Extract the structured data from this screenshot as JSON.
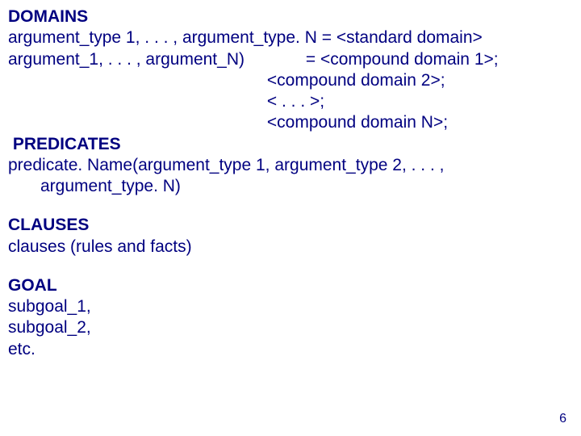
{
  "text_color": "#000080",
  "background_color": "#ffffff",
  "font_family": "Arial",
  "font_size_pt": 16,
  "page_number": "6",
  "sections": {
    "domains": {
      "heading": "DOMAINS",
      "line1_left": "argument_type 1, . . . , argument_type. N = ",
      "line1_right": "<standard domain>",
      "line2_left": "argument_1, . . . , argument_N)",
      "line2_mid": "             = ",
      "line2_right": "<compound domain 1>;",
      "line3": "<compound domain 2>;",
      "line4": "< . . . >;",
      "line5": "<compound domain N>;"
    },
    "predicates": {
      "heading": " PREDICATES",
      "line1": "predicate. Name(argument_type 1, argument_type 2, . . . ,",
      "line2": "argument_type. N)"
    },
    "clauses": {
      "heading": "CLAUSES",
      "line1": "clauses (rules and facts)"
    },
    "goal": {
      "heading": "GOAL",
      "line1": "subgoal_1,",
      "line2": "subgoal_2,",
      "line3": "etc."
    }
  }
}
